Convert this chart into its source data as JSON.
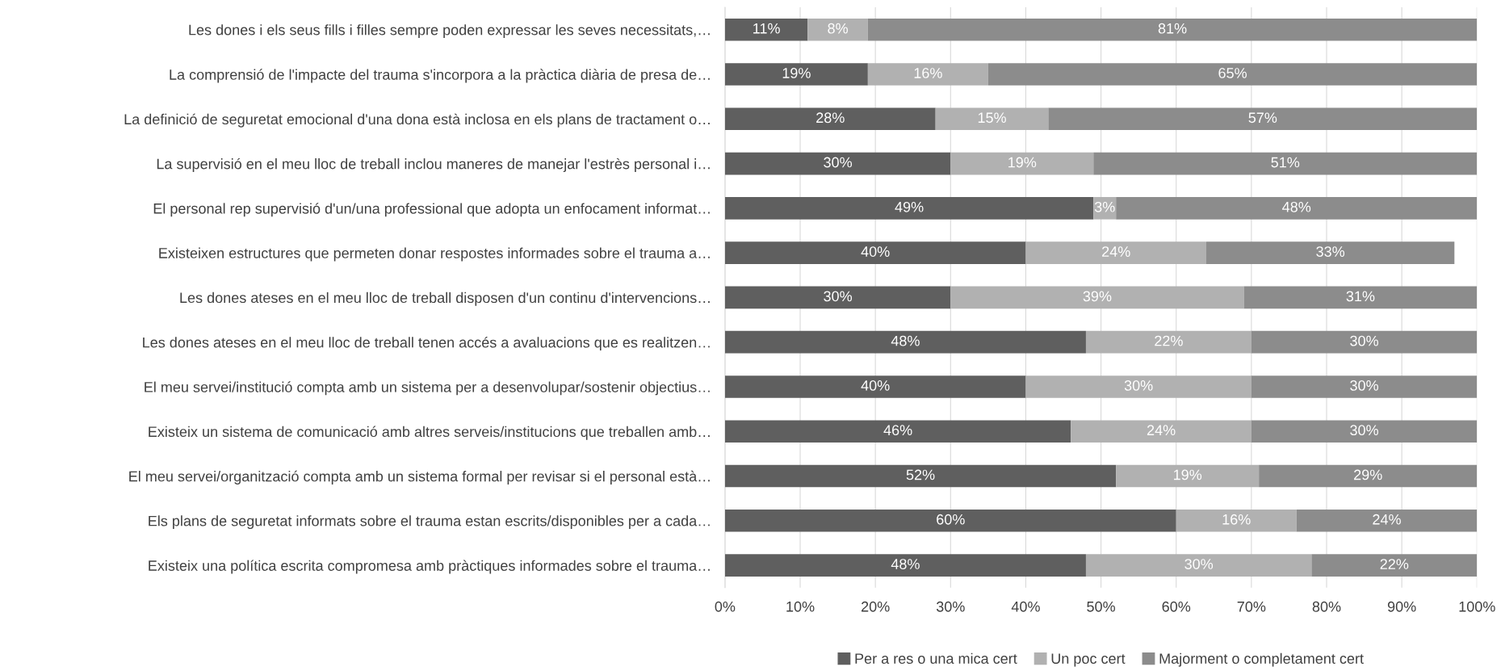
{
  "chart_data": {
    "type": "bar",
    "orientation": "horizontal",
    "stacked": true,
    "grid": "x",
    "legend": "bottom",
    "categories": [
      "Les dones i els seus fills i filles sempre poden expressar les seves necessitats,…",
      "La comprensió de l'impacte del trauma s'incorpora a la pràctica diària de presa de…",
      "La definició de seguretat emocional d'una dona està inclosa en els plans de tractament o…",
      "La supervisió en el meu lloc de treball inclou maneres de manejar l'estrès personal i…",
      "El personal rep supervisió d'un/una professional que adopta un enfocament informat…",
      "Existeixen estructures que permeten donar respostes informades sobre el trauma a…",
      "Les dones ateses en el meu lloc de treball disposen d'un continu d'intervencions…",
      "Les dones ateses en el meu lloc de treball tenen accés a avaluacions que es realitzen…",
      "El meu servei/institució compta amb un sistema per a desenvolupar/sostenir objectius…",
      "Existeix un sistema de comunicació amb altres serveis/institucions que treballen amb…",
      "El meu servei/organització compta amb un sistema formal per revisar si el personal està…",
      "Els plans de seguretat informats sobre el trauma estan escrits/disponibles per a cada…",
      "Existeix una política escrita compromesa amb pràctiques informades sobre el trauma…"
    ],
    "series": [
      {
        "name": "Per a res o una mica cert",
        "color": "#5f5f5f",
        "values": [
          11,
          19,
          28,
          30,
          49,
          40,
          30,
          48,
          40,
          46,
          52,
          60,
          48
        ],
        "value_labels": [
          "11%",
          "19%",
          "28%",
          "30%",
          "49%",
          "40%",
          "30%",
          "48%",
          "40%",
          "46%",
          "52%",
          "60%",
          "48%"
        ]
      },
      {
        "name": "Un poc cert",
        "color": "#b1b1b1",
        "values": [
          8,
          16,
          15,
          19,
          3,
          24,
          39,
          22,
          30,
          24,
          19,
          16,
          30
        ],
        "value_labels": [
          "8%",
          "16%",
          "15%",
          "19%",
          "3%",
          "24%",
          "39%",
          "22%",
          "30%",
          "24%",
          "19%",
          "16%",
          "30%"
        ]
      },
      {
        "name": "Majorment o completament cert",
        "color": "#8c8c8c",
        "values": [
          81,
          65,
          57,
          51,
          48,
          33,
          31,
          30,
          30,
          30,
          29,
          24,
          22
        ],
        "value_labels": [
          "81%",
          "65%",
          "57%",
          "51%",
          "48%",
          "33%",
          "31%",
          "30%",
          "30%",
          "30%",
          "29%",
          "24%",
          "22%"
        ]
      }
    ],
    "xlim": [
      0,
      100
    ],
    "xticks": [
      {
        "value": 0,
        "label": "0%"
      },
      {
        "value": 10,
        "label": "10%"
      },
      {
        "value": 20,
        "label": "20%"
      },
      {
        "value": 30,
        "label": "30%"
      },
      {
        "value": 40,
        "label": "40%"
      },
      {
        "value": 50,
        "label": "50%"
      },
      {
        "value": 60,
        "label": "60%"
      },
      {
        "value": 70,
        "label": "70%"
      },
      {
        "value": 80,
        "label": "80%"
      },
      {
        "value": 90,
        "label": "90%"
      },
      {
        "value": 100,
        "label": "100%"
      }
    ]
  }
}
